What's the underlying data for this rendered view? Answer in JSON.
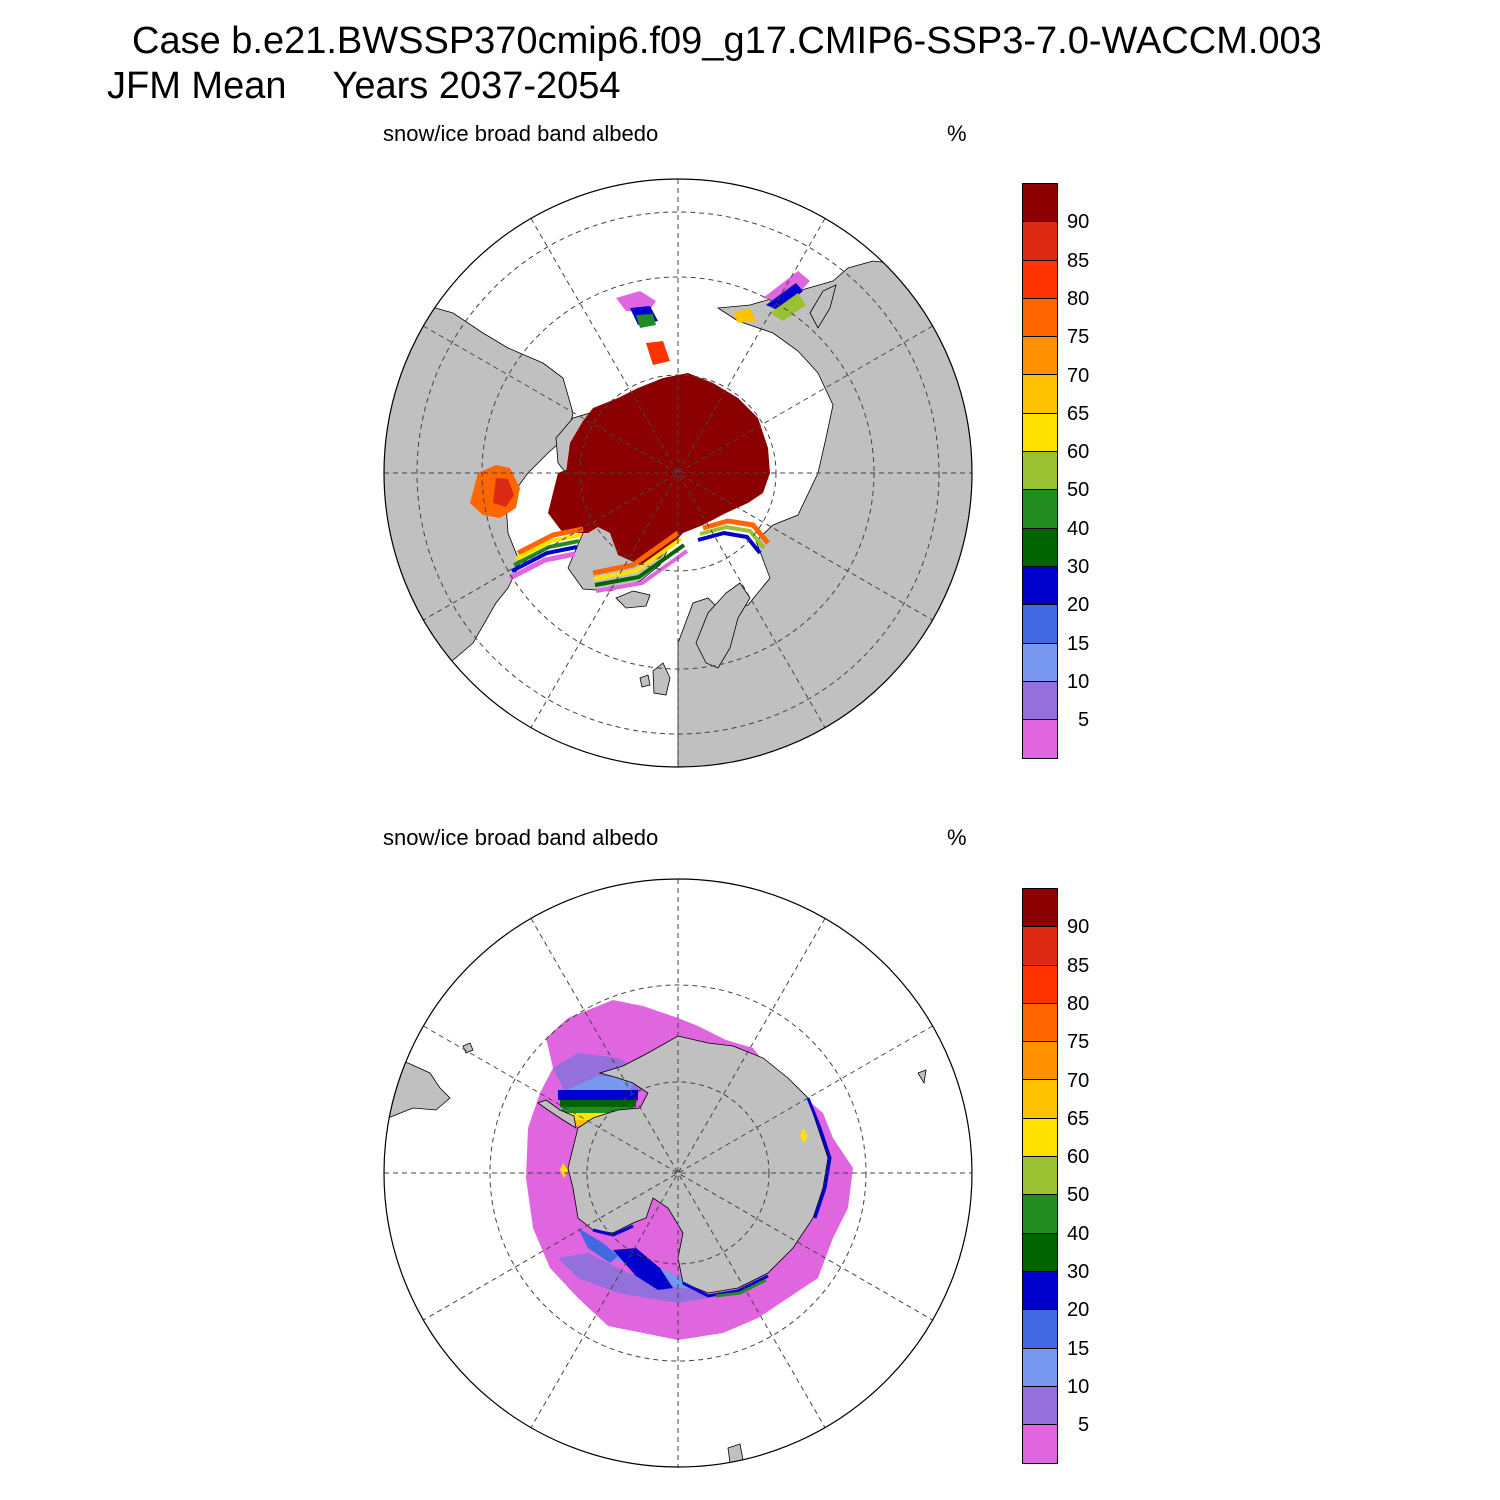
{
  "title": {
    "case_line": "Case b.e21.BWSSP370cmip6.f09_g17.CMIP6-SSP3-7.0-WACCM.003",
    "season": "JFM Mean",
    "years": "Years 2037-2054"
  },
  "panels": [
    {
      "id": "north",
      "variable": "snow/ice broad band albedo",
      "units": "%"
    },
    {
      "id": "south",
      "variable": "snow/ice broad band albedo",
      "units": "%"
    }
  ],
  "colorbar": {
    "levels": [
      "90",
      "85",
      "80",
      "75",
      "70",
      "65",
      "60",
      "50",
      "40",
      "30",
      "20",
      "15",
      "10",
      "5"
    ],
    "colors": [
      "#8b0000",
      "#dc2a14",
      "#ff3300",
      "#ff6600",
      "#ff9100",
      "#ffc200",
      "#ffe100",
      "#9ac132",
      "#228b22",
      "#006400",
      "#0000cd",
      "#4169e1",
      "#7898f0",
      "#9370db",
      "#e066e0"
    ]
  },
  "colors": {
    "land": "#c0c0c0",
    "ocean": "#ffffff",
    "ice_core": "#8b0000"
  }
}
